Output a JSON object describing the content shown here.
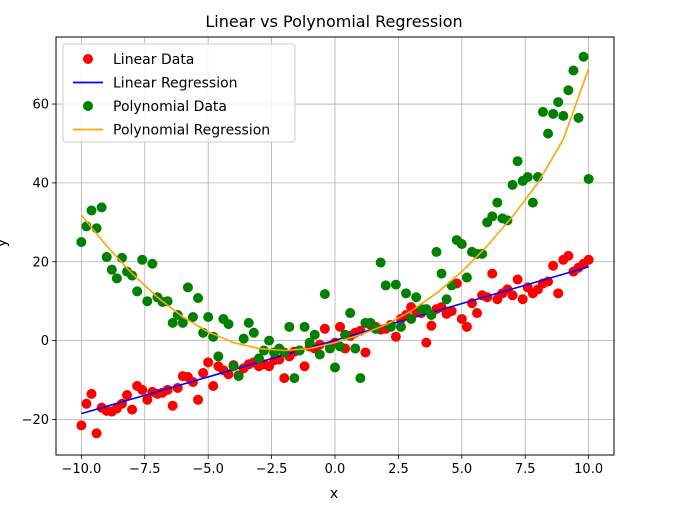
{
  "chart_data": {
    "type": "scatter",
    "title": "Linear vs Polynomial Regression",
    "xlabel": "x",
    "ylabel": "y",
    "xlim": [
      -11.0,
      11.0
    ],
    "ylim": [
      -29,
      77
    ],
    "xticks": [
      -10.0,
      -7.5,
      -5.0,
      -2.5,
      0.0,
      2.5,
      5.0,
      7.5,
      10.0
    ],
    "xtick_labels": [
      "−10.0",
      "−7.5",
      "−5.0",
      "−2.5",
      "0.0",
      "2.5",
      "5.0",
      "7.5",
      "10.0"
    ],
    "yticks": [
      -20,
      0,
      20,
      40,
      60
    ],
    "ytick_labels": [
      "−20",
      "0",
      "20",
      "40",
      "60"
    ],
    "grid": true,
    "legend_position": "top-left",
    "series": [
      {
        "name": "Linear Data",
        "kind": "scatter",
        "color": "#ff0000",
        "x": [
          -10.0,
          -9.8,
          -9.6,
          -9.4,
          -9.2,
          -9.0,
          -8.8,
          -8.6,
          -8.4,
          -8.2,
          -8.0,
          -7.8,
          -7.6,
          -7.4,
          -7.2,
          -7.0,
          -6.8,
          -6.6,
          -6.4,
          -6.2,
          -6.0,
          -5.8,
          -5.6,
          -5.4,
          -5.2,
          -5.0,
          -4.8,
          -4.6,
          -4.4,
          -4.2,
          -4.0,
          -3.8,
          -3.6,
          -3.4,
          -3.2,
          -3.0,
          -2.8,
          -2.6,
          -2.4,
          -2.2,
          -2.0,
          -1.8,
          -1.6,
          -1.4,
          -1.2,
          -1.0,
          -0.8,
          -0.6,
          -0.4,
          -0.2,
          0.0,
          0.2,
          0.4,
          0.6,
          0.8,
          1.0,
          1.2,
          1.4,
          1.6,
          1.8,
          2.0,
          2.2,
          2.4,
          2.6,
          2.8,
          3.0,
          3.2,
          3.4,
          3.6,
          3.8,
          4.0,
          4.2,
          4.4,
          4.6,
          4.8,
          5.0,
          5.2,
          5.4,
          5.6,
          5.8,
          6.0,
          6.2,
          6.4,
          6.6,
          6.8,
          7.0,
          7.2,
          7.4,
          7.6,
          7.8,
          8.0,
          8.2,
          8.4,
          8.6,
          8.8,
          9.0,
          9.2,
          9.4,
          9.6,
          9.8,
          10.0
        ],
        "y": [
          -21.5,
          -16.0,
          -13.5,
          -23.5,
          -17.0,
          -17.8,
          -18.0,
          -17.2,
          -16.0,
          -13.8,
          -17.5,
          -11.5,
          -12.5,
          -15.0,
          -13.0,
          -13.5,
          -13.2,
          -12.5,
          -16.5,
          -12.0,
          -9.0,
          -9.2,
          -10.5,
          -15.0,
          -8.2,
          -5.5,
          -11.5,
          -6.5,
          -7.5,
          -8.5,
          -6.2,
          -8.8,
          -7.0,
          -6.0,
          -5.5,
          -6.5,
          -6.0,
          -6.5,
          -5.0,
          -4.8,
          -9.5,
          -4.0,
          -2.8,
          -2.5,
          -6.5,
          -1.5,
          -2.0,
          -1.0,
          3.0,
          -1.5,
          -0.5,
          3.5,
          -2.0,
          1.2,
          2.0,
          2.5,
          -3.0,
          4.0,
          3.5,
          2.8,
          3.0,
          4.0,
          1.0,
          5.5,
          6.5,
          8.5,
          7.5,
          7.0,
          -0.5,
          3.8,
          8.0,
          8.5,
          6.8,
          7.5,
          14.5,
          5.5,
          3.5,
          9.5,
          7.0,
          11.5,
          11.0,
          17.0,
          10.5,
          12.0,
          13.0,
          11.5,
          15.5,
          10.5,
          13.5,
          12.0,
          13.0,
          14.5,
          15.0,
          19.0,
          12.0,
          20.5,
          21.5,
          17.5,
          18.5,
          19.5,
          20.5
        ]
      },
      {
        "name": "Linear Regression",
        "kind": "line",
        "color": "#0000ff",
        "x": [
          -10.0,
          10.0
        ],
        "y": [
          -18.5,
          18.7
        ]
      },
      {
        "name": "Polynomial Data",
        "kind": "scatter",
        "color": "#008000",
        "x": [
          -10.0,
          -9.8,
          -9.6,
          -9.4,
          -9.2,
          -9.0,
          -8.8,
          -8.6,
          -8.4,
          -8.2,
          -8.0,
          -7.8,
          -7.6,
          -7.4,
          -7.2,
          -7.0,
          -6.8,
          -6.6,
          -6.4,
          -6.2,
          -6.0,
          -5.8,
          -5.6,
          -5.4,
          -5.2,
          -5.0,
          -4.8,
          -4.6,
          -4.4,
          -4.2,
          -4.0,
          -3.8,
          -3.6,
          -3.4,
          -3.2,
          -3.0,
          -2.8,
          -2.6,
          -2.4,
          -2.2,
          -2.0,
          -1.8,
          -1.6,
          -1.4,
          -1.2,
          -1.0,
          -0.8,
          -0.6,
          -0.4,
          -0.2,
          0.0,
          0.2,
          0.4,
          0.6,
          0.8,
          1.0,
          1.2,
          1.4,
          1.6,
          1.8,
          2.0,
          2.2,
          2.4,
          2.6,
          2.8,
          3.0,
          3.2,
          3.4,
          3.6,
          3.8,
          4.0,
          4.2,
          4.4,
          4.6,
          4.8,
          5.0,
          5.2,
          5.4,
          5.6,
          5.8,
          6.0,
          6.2,
          6.4,
          6.6,
          6.8,
          7.0,
          7.2,
          7.4,
          7.6,
          7.8,
          8.0,
          8.2,
          8.4,
          8.6,
          8.8,
          9.0,
          9.2,
          9.4,
          9.6,
          9.8,
          10.0
        ],
        "y": [
          25.0,
          29.0,
          33.0,
          28.5,
          33.8,
          21.2,
          18.0,
          15.8,
          21.0,
          17.5,
          16.5,
          12.5,
          20.5,
          10.0,
          19.5,
          11.0,
          9.8,
          10.0,
          4.5,
          6.5,
          4.5,
          13.5,
          6.0,
          10.8,
          2.0,
          6.0,
          1.0,
          -4.0,
          5.5,
          4.2,
          -6.5,
          -9.0,
          0.5,
          4.5,
          2.0,
          -4.5,
          -2.5,
          0.0,
          -3.0,
          -2.0,
          -3.0,
          3.5,
          -9.5,
          -2.5,
          3.5,
          -0.5,
          1.5,
          -3.5,
          11.8,
          -2.0,
          -6.8,
          -1.5,
          1.5,
          7.0,
          -2.0,
          -9.5,
          4.5,
          4.5,
          3.0,
          19.8,
          14.0,
          3.5,
          14.2,
          3.5,
          12.0,
          5.5,
          11.0,
          8.0,
          8.0,
          6.5,
          22.5,
          17.0,
          10.5,
          14.0,
          25.5,
          24.5,
          16.0,
          22.5,
          22.0,
          22.0,
          30.0,
          31.5,
          35.0,
          31.0,
          30.5,
          39.5,
          45.5,
          40.5,
          41.5,
          35.0,
          41.5,
          58.0,
          52.5,
          57.5,
          60.5,
          57.0,
          63.5,
          68.5,
          56.5,
          72.0,
          41.0
        ]
      },
      {
        "name": "Polynomial Regression",
        "kind": "line",
        "color": "#ffa500",
        "x": [
          -10.0,
          -9.0,
          -8.0,
          -7.0,
          -6.0,
          -5.0,
          -4.0,
          -3.0,
          -2.0,
          -1.0,
          0.0,
          1.0,
          2.0,
          3.0,
          4.0,
          5.0,
          6.0,
          7.0,
          8.0,
          9.0,
          10.0
        ],
        "y": [
          31.8,
          24.0,
          17.0,
          11.0,
          6.0,
          2.2,
          -0.5,
          -2.0,
          -2.5,
          -2.0,
          -0.5,
          1.5,
          4.0,
          7.5,
          12.0,
          17.5,
          24.0,
          31.5,
          40.0,
          51.0,
          69.0
        ]
      }
    ]
  }
}
